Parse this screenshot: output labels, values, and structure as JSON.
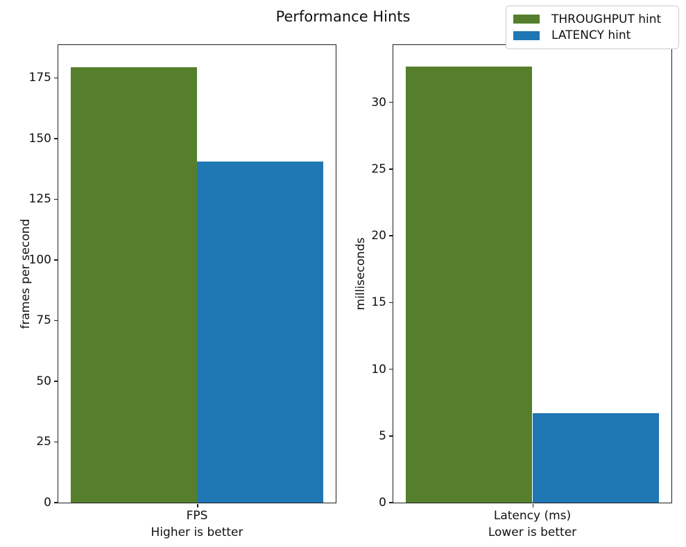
{
  "title": "Performance Hints",
  "legend": {
    "items": [
      {
        "label": "THROUGHPUT hint",
        "color": "#557f2d"
      },
      {
        "label": "LATENCY hint",
        "color": "#1f77b4"
      }
    ]
  },
  "chart_data": [
    {
      "type": "bar",
      "subplot": "left",
      "categories": [
        "FPS"
      ],
      "series": [
        {
          "name": "THROUGHPUT hint",
          "values": [
            179.5
          ],
          "color": "#557f2d"
        },
        {
          "name": "LATENCY hint",
          "values": [
            140.5
          ],
          "color": "#1f77b4"
        }
      ],
      "xlabel": "Higher is better",
      "ylabel": "frames per second",
      "ylim": [
        0,
        188.5
      ],
      "yticks": [
        0,
        25,
        50,
        75,
        100,
        125,
        150,
        175
      ],
      "grid": false
    },
    {
      "type": "bar",
      "subplot": "right",
      "categories": [
        "Latency (ms)"
      ],
      "series": [
        {
          "name": "THROUGHPUT hint",
          "values": [
            32.7
          ],
          "color": "#557f2d"
        },
        {
          "name": "LATENCY hint",
          "values": [
            6.7
          ],
          "color": "#1f77b4"
        }
      ],
      "xlabel": "Lower is better",
      "ylabel": "milliseconds",
      "ylim": [
        0,
        34.3
      ],
      "yticks": [
        0,
        5,
        10,
        15,
        20,
        25,
        30
      ],
      "grid": false
    }
  ],
  "layout": {
    "legend_position": "upper right",
    "figure_title_align": "center"
  }
}
